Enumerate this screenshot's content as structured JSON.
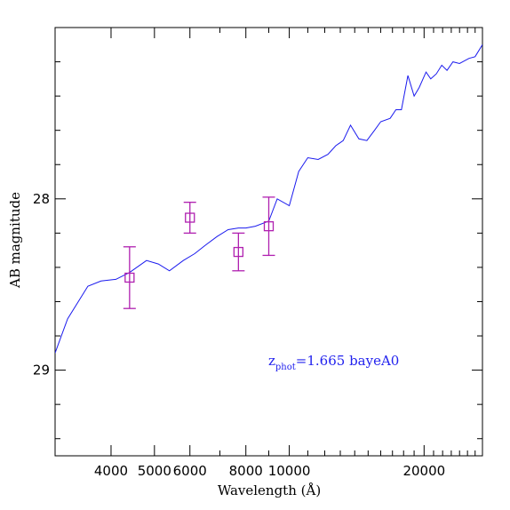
{
  "chart_data": {
    "type": "line",
    "xlabel": "Wavelength (Å)",
    "ylabel": "AB magnitude",
    "x_scale": "log",
    "xlim": [
      3000,
      27000
    ],
    "ylim": [
      29.5,
      27
    ],
    "y_inverted": true,
    "grid": false,
    "x_major_ticks": [
      4000,
      5000,
      6000,
      8000,
      10000,
      20000
    ],
    "x_tick_labels": [
      "4000",
      "5000",
      "6000",
      "8000",
      "10000",
      "20000"
    ],
    "y_tick_labels": [
      {
        "value": 28,
        "label": "28"
      },
      {
        "value": 29,
        "label": "29"
      }
    ],
    "annotation": {
      "prefix": "z",
      "subscript": "phot",
      "text": "=1.665 bayeA0",
      "color": "#2222ee"
    },
    "series": [
      {
        "kind": "line",
        "color": "#1a1aee",
        "x": [
          3000,
          3200,
          3550,
          3800,
          4100,
          4400,
          4800,
          5100,
          5400,
          5800,
          6150,
          6500,
          6900,
          7300,
          7700,
          8000,
          8400,
          9000,
          9400,
          10000,
          10500,
          11000,
          11600,
          12200,
          12700,
          13200,
          13700,
          14300,
          14900,
          15500,
          16000,
          16800,
          17300,
          17800,
          18400,
          19000,
          19500,
          20200,
          20700,
          21300,
          21900,
          22500,
          23200,
          24000,
          25200,
          26000,
          27000
        ],
        "y": [
          28.9,
          28.7,
          28.51,
          28.48,
          28.47,
          28.43,
          28.36,
          28.38,
          28.42,
          28.36,
          28.32,
          28.27,
          28.22,
          28.18,
          28.17,
          28.17,
          28.16,
          28.13,
          28.0,
          28.04,
          27.84,
          27.76,
          27.77,
          27.74,
          27.69,
          27.66,
          27.57,
          27.65,
          27.66,
          27.6,
          27.55,
          27.53,
          27.48,
          27.48,
          27.28,
          27.4,
          27.35,
          27.26,
          27.3,
          27.27,
          27.22,
          27.25,
          27.2,
          27.21,
          27.18,
          27.17,
          27.1
        ]
      },
      {
        "kind": "points_with_errors",
        "marker": "square",
        "color": "#b020b0",
        "x": [
          4400,
          6000,
          7700,
          9000
        ],
        "y": [
          28.46,
          28.11,
          28.31,
          28.16
        ],
        "yerr": [
          0.18,
          0.09,
          0.11,
          0.17
        ]
      }
    ]
  }
}
